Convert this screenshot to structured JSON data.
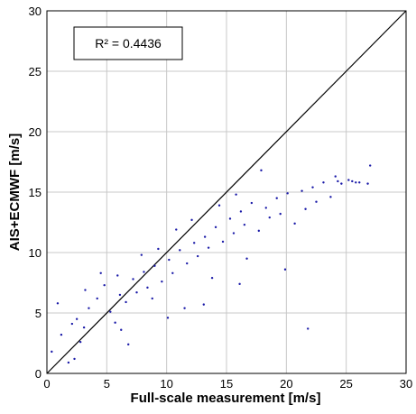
{
  "chart_data": {
    "type": "scatter",
    "xlabel": "Full-scale measurement [m/s]",
    "ylabel": "AIS+ECMWF [m/s]",
    "xlim": [
      0,
      30
    ],
    "ylim": [
      0,
      30
    ],
    "xticks": [
      "0",
      "5",
      "10",
      "15",
      "20",
      "25",
      "30"
    ],
    "yticks": [
      "0",
      "5",
      "10",
      "15",
      "20",
      "25",
      "30"
    ],
    "grid": true,
    "annotation": "R² = 0.4436",
    "annotation_placement": "top-left",
    "reference_line": {
      "x": [
        0,
        30
      ],
      "y": [
        0,
        30
      ]
    },
    "point_color": "#1a1aa8",
    "points_x": [
      0.4,
      1.2,
      2.1,
      2.8,
      3.5,
      1.8,
      0.9,
      4.2,
      3.1,
      2.5,
      5.3,
      4.8,
      6.1,
      5.7,
      7.2,
      6.6,
      8.1,
      7.5,
      9.0,
      8.4,
      10.2,
      9.6,
      11.1,
      10.5,
      12.3,
      11.7,
      13.2,
      12.6,
      14.1,
      13.5,
      15.3,
      14.7,
      16.2,
      15.6,
      17.1,
      16.5,
      18.3,
      17.7,
      19.2,
      18.6,
      20.1,
      19.5,
      21.3,
      20.7,
      22.2,
      21.6,
      23.1,
      22.5,
      24.3,
      23.7,
      25.2,
      24.6,
      26.1,
      25.5,
      27.0,
      6.2,
      8.8,
      11.5,
      13.8,
      16.7,
      4.5,
      7.9,
      10.8,
      14.4,
      17.9,
      3.2,
      5.9,
      9.3,
      12.1,
      15.8,
      2.3,
      6.8,
      10.1,
      13.1,
      16.1,
      19.9,
      21.8,
      25.8,
      26.8,
      24.1
    ],
    "points_y": [
      1.8,
      3.2,
      4.1,
      2.6,
      5.4,
      0.9,
      5.8,
      6.2,
      3.8,
      4.5,
      5.1,
      7.3,
      6.5,
      4.2,
      7.8,
      5.9,
      8.4,
      6.7,
      8.9,
      7.1,
      9.4,
      7.6,
      10.2,
      8.3,
      10.8,
      9.1,
      11.3,
      9.7,
      12.1,
      10.4,
      12.8,
      10.9,
      13.4,
      11.6,
      14.1,
      12.3,
      13.7,
      11.8,
      14.5,
      12.9,
      14.9,
      13.2,
      15.1,
      12.4,
      15.4,
      13.6,
      15.8,
      14.2,
      15.9,
      14.6,
      16.0,
      15.7,
      15.8,
      15.9,
      17.2,
      3.6,
      6.2,
      5.4,
      7.9,
      9.5,
      8.3,
      9.8,
      11.9,
      13.9,
      16.8,
      6.9,
      8.1,
      10.3,
      12.7,
      14.8,
      1.2,
      2.4,
      4.6,
      5.7,
      7.4,
      8.6,
      3.7,
      15.8,
      15.7,
      16.3
    ]
  }
}
